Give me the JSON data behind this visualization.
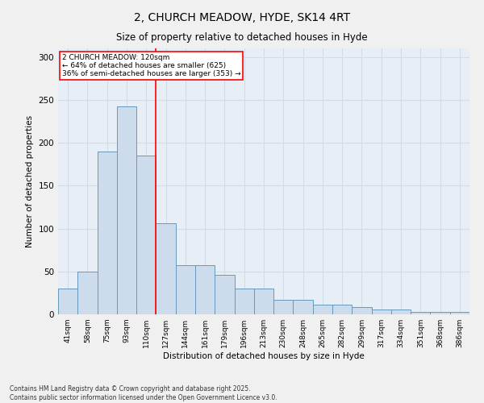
{
  "title_line1": "2, CHURCH MEADOW, HYDE, SK14 4RT",
  "title_line2": "Size of property relative to detached houses in Hyde",
  "xlabel": "Distribution of detached houses by size in Hyde",
  "ylabel": "Number of detached properties",
  "categories": [
    "41sqm",
    "58sqm",
    "75sqm",
    "93sqm",
    "110sqm",
    "127sqm",
    "144sqm",
    "161sqm",
    "179sqm",
    "196sqm",
    "213sqm",
    "230sqm",
    "248sqm",
    "265sqm",
    "282sqm",
    "299sqm",
    "317sqm",
    "334sqm",
    "351sqm",
    "368sqm",
    "386sqm"
  ],
  "values": [
    30,
    50,
    190,
    242,
    185,
    106,
    57,
    57,
    46,
    30,
    30,
    17,
    17,
    11,
    11,
    8,
    6,
    6,
    3,
    3,
    3
  ],
  "bar_color": "#cddcec",
  "bar_edge_color": "#6699bb",
  "grid_color": "#d0dde8",
  "background_color": "#e8eef5",
  "fig_background_color": "#f0f0f0",
  "property_line_x": 4.5,
  "annotation_text_line1": "2 CHURCH MEADOW: 120sqm",
  "annotation_text_line2": "← 64% of detached houses are smaller (625)",
  "annotation_text_line3": "36% of semi-detached houses are larger (353) →",
  "ylim": [
    0,
    310
  ],
  "yticks": [
    0,
    50,
    100,
    150,
    200,
    250,
    300
  ],
  "footnote_line1": "Contains HM Land Registry data © Crown copyright and database right 2025.",
  "footnote_line2": "Contains public sector information licensed under the Open Government Licence v3.0."
}
